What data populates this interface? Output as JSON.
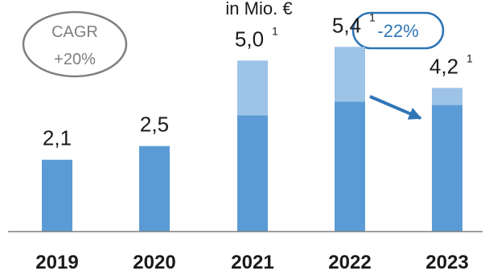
{
  "chart_data": {
    "type": "bar",
    "title": "in Mio. €",
    "categories": [
      "2019",
      "2020",
      "2021",
      "2022",
      "2023"
    ],
    "series": [
      {
        "values": [
          2.1,
          2.5,
          3.4,
          3.8,
          3.7
        ]
      },
      {
        "values": [
          0,
          0,
          1.6,
          1.6,
          0.5
        ]
      }
    ],
    "totals": [
      2.1,
      2.5,
      5.0,
      5.4,
      4.2
    ],
    "total_labels": [
      "2,1",
      "2,5",
      "5,0",
      "5,4",
      "4,2"
    ],
    "footnote_markers": [
      "",
      "",
      "1",
      "1",
      "1"
    ],
    "annotations": {
      "cagr_line1": "CAGR",
      "cagr_line2": "+20%",
      "change": "-22%"
    },
    "ylim": [
      0,
      6.3
    ],
    "grid": false,
    "colors": {
      "dark": "#5b9bd5",
      "light": "#9dc3e6",
      "cagr_border": "#7f7f7f",
      "change_border": "#2e75b6",
      "arrow": "#2e75b6",
      "axis": "#7f7f7f"
    }
  }
}
